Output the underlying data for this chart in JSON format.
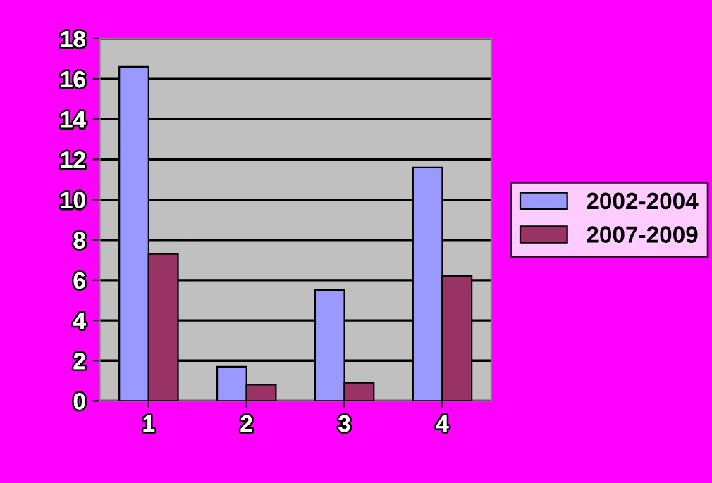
{
  "chart_data": {
    "type": "bar",
    "categories": [
      "1",
      "2",
      "3",
      "4"
    ],
    "series": [
      {
        "name": "2002-2004",
        "color": "#9999ff",
        "values": [
          16.6,
          1.7,
          5.5,
          11.6
        ]
      },
      {
        "name": "2007-2009",
        "color": "#993366",
        "values": [
          7.3,
          0.8,
          0.9,
          6.2
        ]
      }
    ],
    "ylim": [
      0,
      18
    ],
    "yticks": [
      0,
      2,
      4,
      6,
      8,
      10,
      12,
      14,
      16,
      18
    ],
    "grid": "y",
    "legend": "right"
  }
}
